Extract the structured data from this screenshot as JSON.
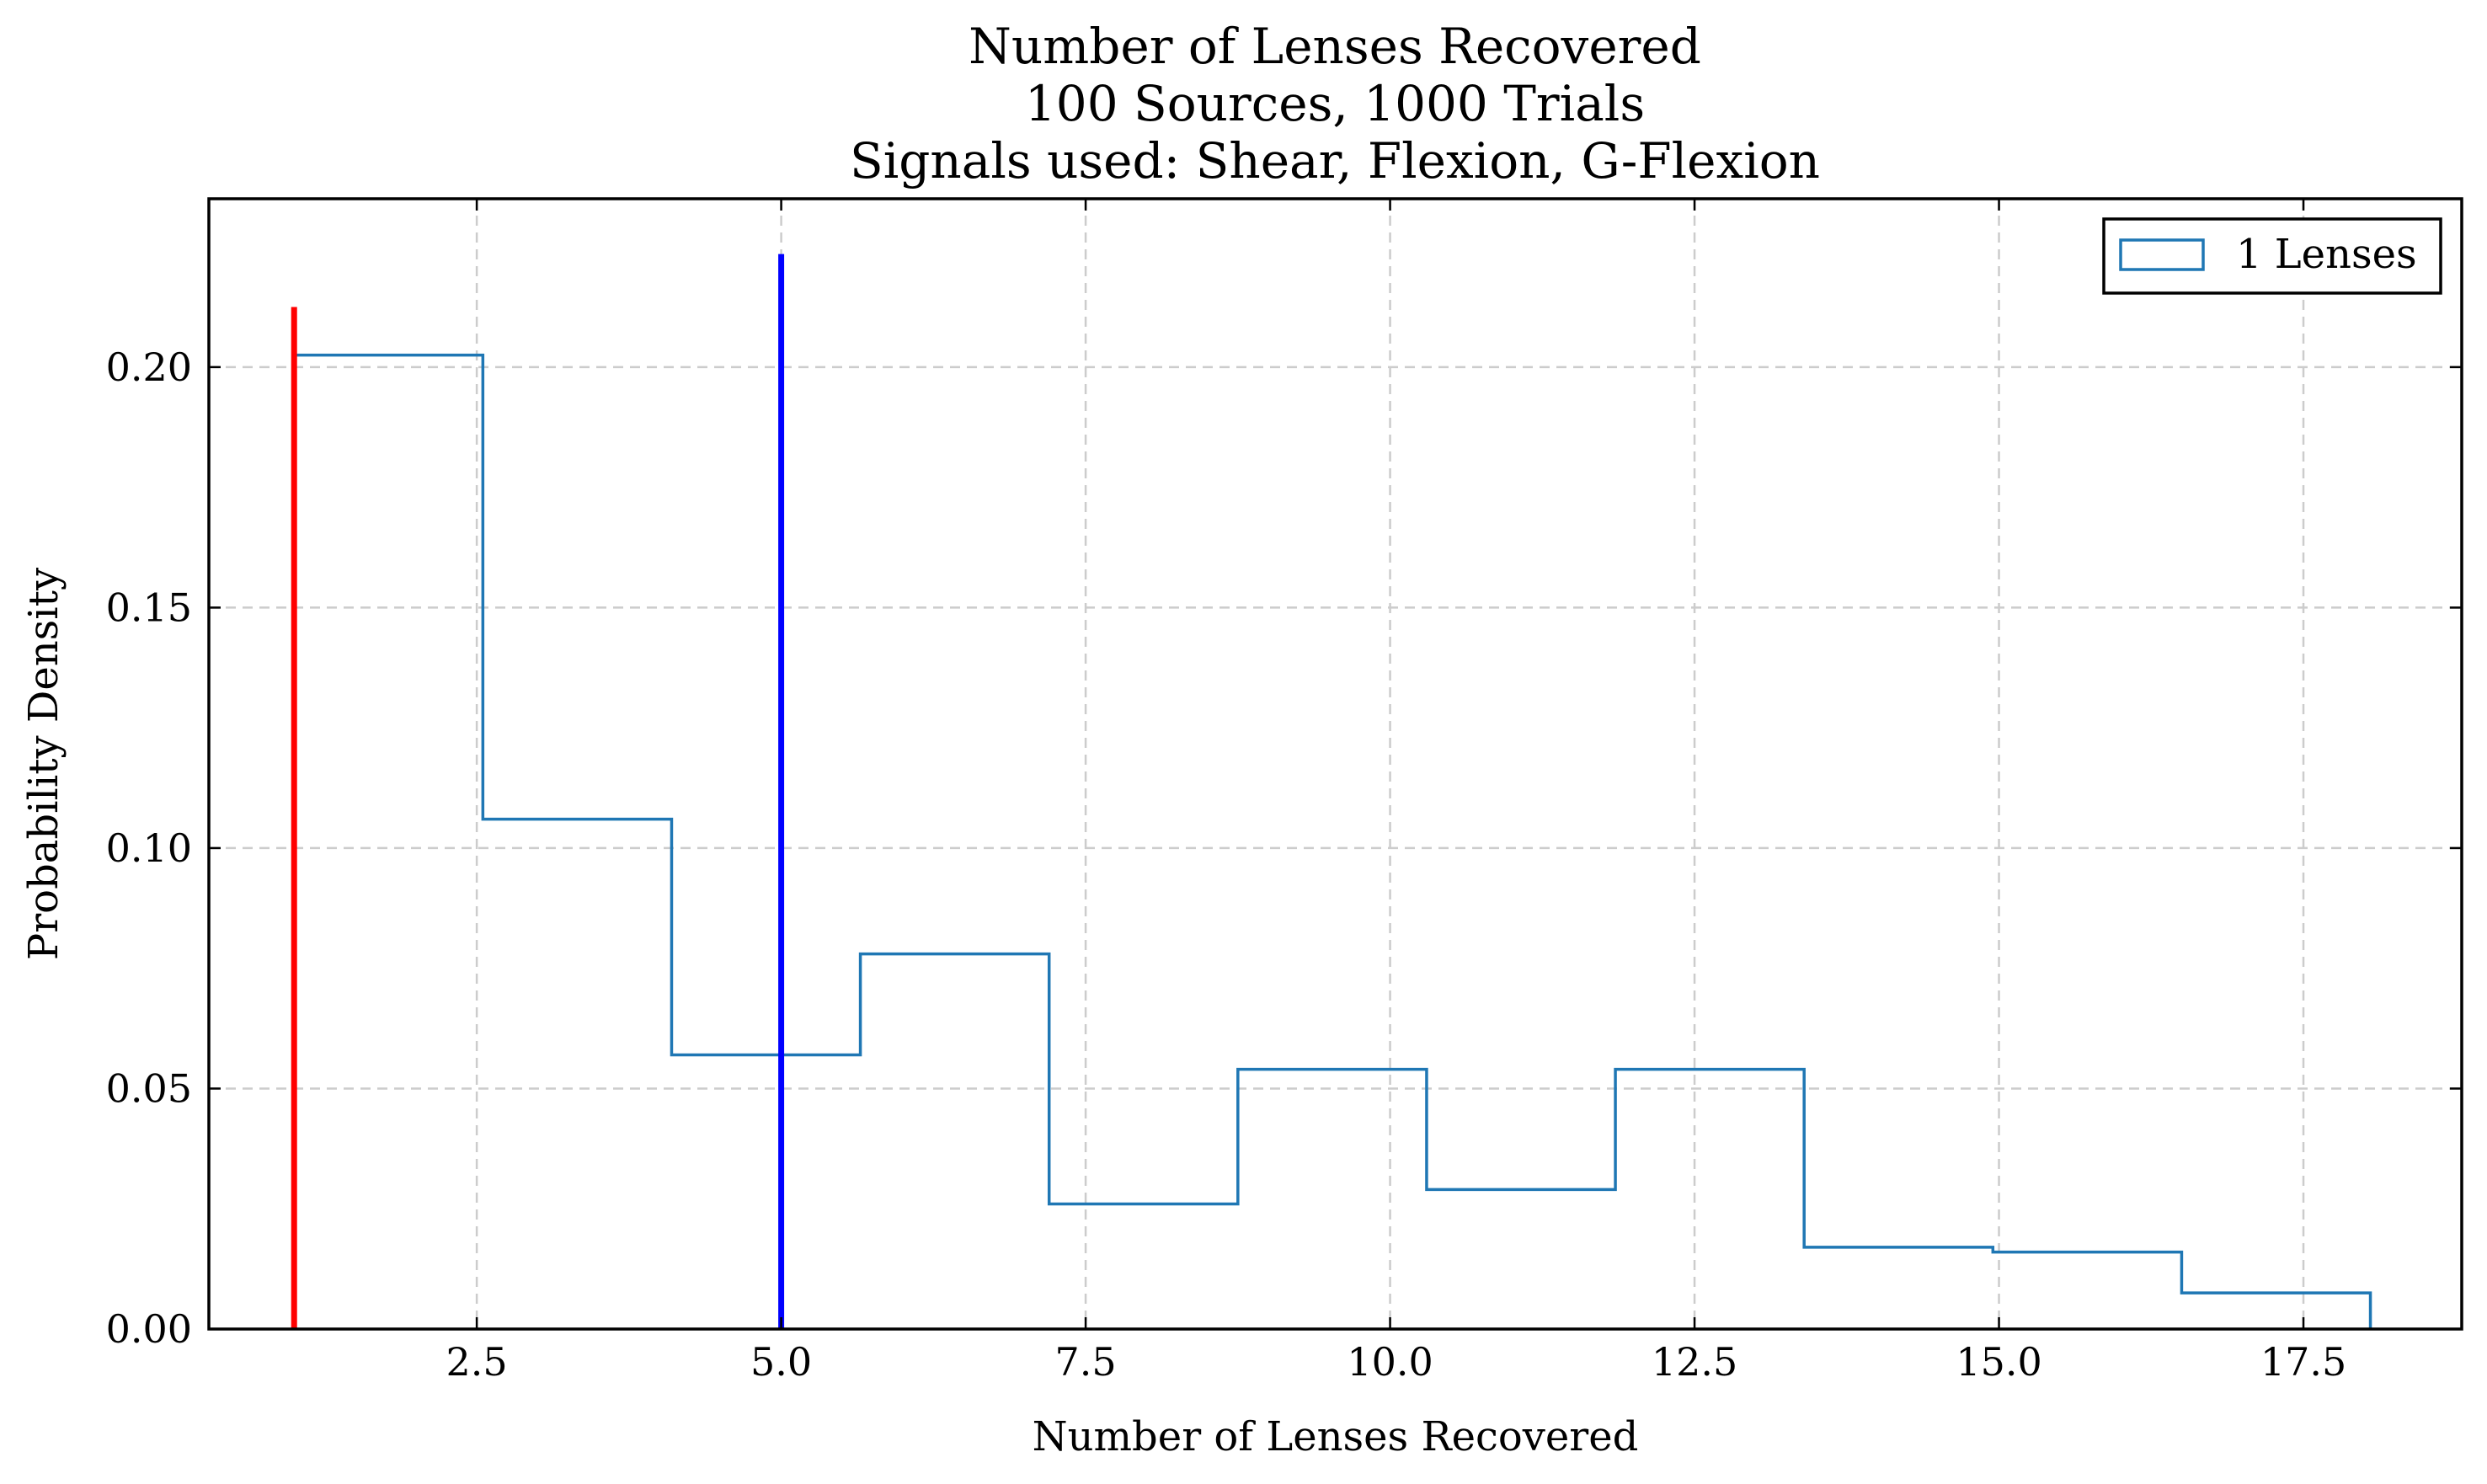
{
  "chart_data": {
    "type": "histogram",
    "title": "Number of Lenses Recovered\n100 Sources, 1000 Trials\nSignals used: Shear, Flexion, G-Flexion",
    "xlabel": "Number of Lenses Recovered",
    "ylabel": "Probability Density",
    "xlim": [
      0.3,
      18.8
    ],
    "ylim": [
      0.0,
      0.235
    ],
    "xticks": [
      2.5,
      5.0,
      7.5,
      10.0,
      12.5,
      15.0,
      17.5
    ],
    "xtick_labels": [
      "2.5",
      "5.0",
      "7.5",
      "10.0",
      "12.5",
      "15.0",
      "17.5"
    ],
    "yticks": [
      0.0,
      0.05,
      0.1,
      0.15,
      0.2
    ],
    "ytick_labels": [
      "0.00",
      "0.05",
      "0.10",
      "0.15",
      "0.20"
    ],
    "grid": true,
    "legend_position": "top-right",
    "series": [
      {
        "name": "1 Lenses",
        "style": "step",
        "color": "#1f77b4",
        "bin_edges": [
          1.0,
          2.55,
          4.1,
          5.65,
          7.2,
          8.75,
          10.3,
          11.85,
          13.4,
          14.95,
          16.5,
          18.05
        ],
        "values": [
          0.2025,
          0.106,
          0.057,
          0.078,
          0.026,
          0.054,
          0.029,
          0.054,
          0.017,
          0.016,
          0.0075
        ]
      }
    ],
    "vlines": [
      {
        "x": 1.0,
        "y_top": 0.2125,
        "color": "#ff0000"
      },
      {
        "x": 5.0,
        "y_top": 0.2235,
        "color": "#0000ff"
      }
    ]
  }
}
